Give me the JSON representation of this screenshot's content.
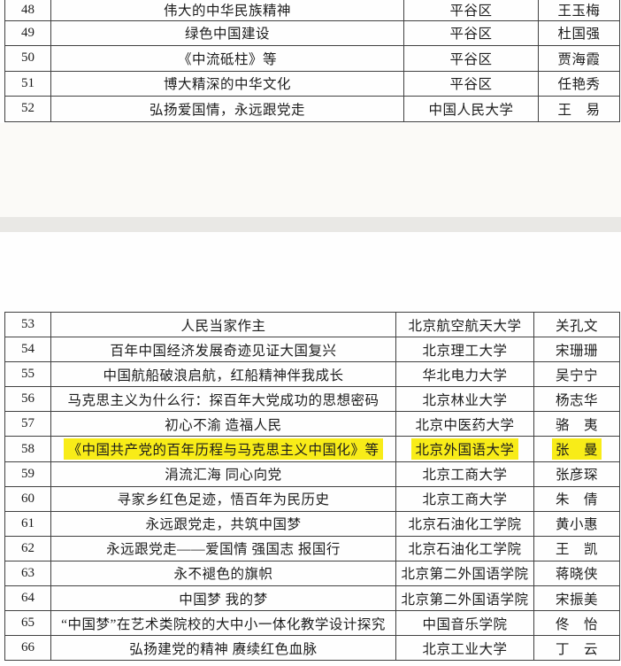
{
  "document": {
    "highlight_color": "#f8ec18",
    "separator_color": "#e9e8e5",
    "columns": [
      "no",
      "title",
      "org",
      "name"
    ]
  },
  "table_top": {
    "rows": [
      {
        "no": "48",
        "title": "伟大的中华民族精神",
        "org": "平谷区",
        "name": "王玉梅",
        "highlighted": false
      },
      {
        "no": "49",
        "title": "绿色中国建设",
        "org": "平谷区",
        "name": "杜国强",
        "highlighted": false
      },
      {
        "no": "50",
        "title": "《中流砥柱》等",
        "org": "平谷区",
        "name": "贾海霞",
        "highlighted": false
      },
      {
        "no": "51",
        "title": "博大精深的中华文化",
        "org": "平谷区",
        "name": "任艳秀",
        "highlighted": false
      },
      {
        "no": "52",
        "title": "弘扬爱国情，永远跟党走",
        "org": "中国人民大学",
        "name": "王　易",
        "highlighted": false
      }
    ]
  },
  "table_bottom": {
    "rows": [
      {
        "no": "53",
        "title": "人民当家作主",
        "org": "北京航空航天大学",
        "name": "关孔文",
        "highlighted": false
      },
      {
        "no": "54",
        "title": "百年中国经济发展奇迹见证大国复兴",
        "org": "北京理工大学",
        "name": "宋珊珊",
        "highlighted": false
      },
      {
        "no": "55",
        "title": "中国航船破浪启航，红船精神伴我成长",
        "org": "华北电力大学",
        "name": "吴宁宁",
        "highlighted": false
      },
      {
        "no": "56",
        "title": "马克思主义为什么行：探百年大党成功的思想密码",
        "org": "北京林业大学",
        "name": "杨志华",
        "highlighted": false
      },
      {
        "no": "57",
        "title": "初心不渝 造福人民",
        "org": "北京中医药大学",
        "name": "骆　夷",
        "highlighted": false
      },
      {
        "no": "58",
        "title": "《中国共产党的百年历程与马克思主义中国化》等",
        "org": "北京外国语大学",
        "name": "张　曼",
        "highlighted": true
      },
      {
        "no": "59",
        "title": "涓流汇海 同心向党",
        "org": "北京工商大学",
        "name": "张彦琛",
        "highlighted": false
      },
      {
        "no": "60",
        "title": "寻家乡红色足迹，悟百年为民历史",
        "org": "北京工商大学",
        "name": "朱　倩",
        "highlighted": false
      },
      {
        "no": "61",
        "title": "永远跟党走，共筑中国梦",
        "org": "北京石油化工学院",
        "name": "黄小惠",
        "highlighted": false
      },
      {
        "no": "62",
        "title": "永远跟党走——爱国情 强国志 报国行",
        "org": "北京石油化工学院",
        "name": "王　凯",
        "highlighted": false
      },
      {
        "no": "63",
        "title": "永不褪色的旗帜",
        "org": "北京第二外国语学院",
        "name": "蒋晓侠",
        "highlighted": false
      },
      {
        "no": "64",
        "title": "中国梦 我的梦",
        "org": "北京第二外国语学院",
        "name": "宋振美",
        "highlighted": false
      },
      {
        "no": "65",
        "title": "“中国梦”在艺术类院校的大中小一体化教学设计探究",
        "org": "中国音乐学院",
        "name": "佟　怡",
        "highlighted": false
      },
      {
        "no": "66",
        "title": "弘扬建党的精神 赓续红色血脉",
        "org": "北京工业大学",
        "name": "丁　云",
        "highlighted": false
      }
    ]
  }
}
